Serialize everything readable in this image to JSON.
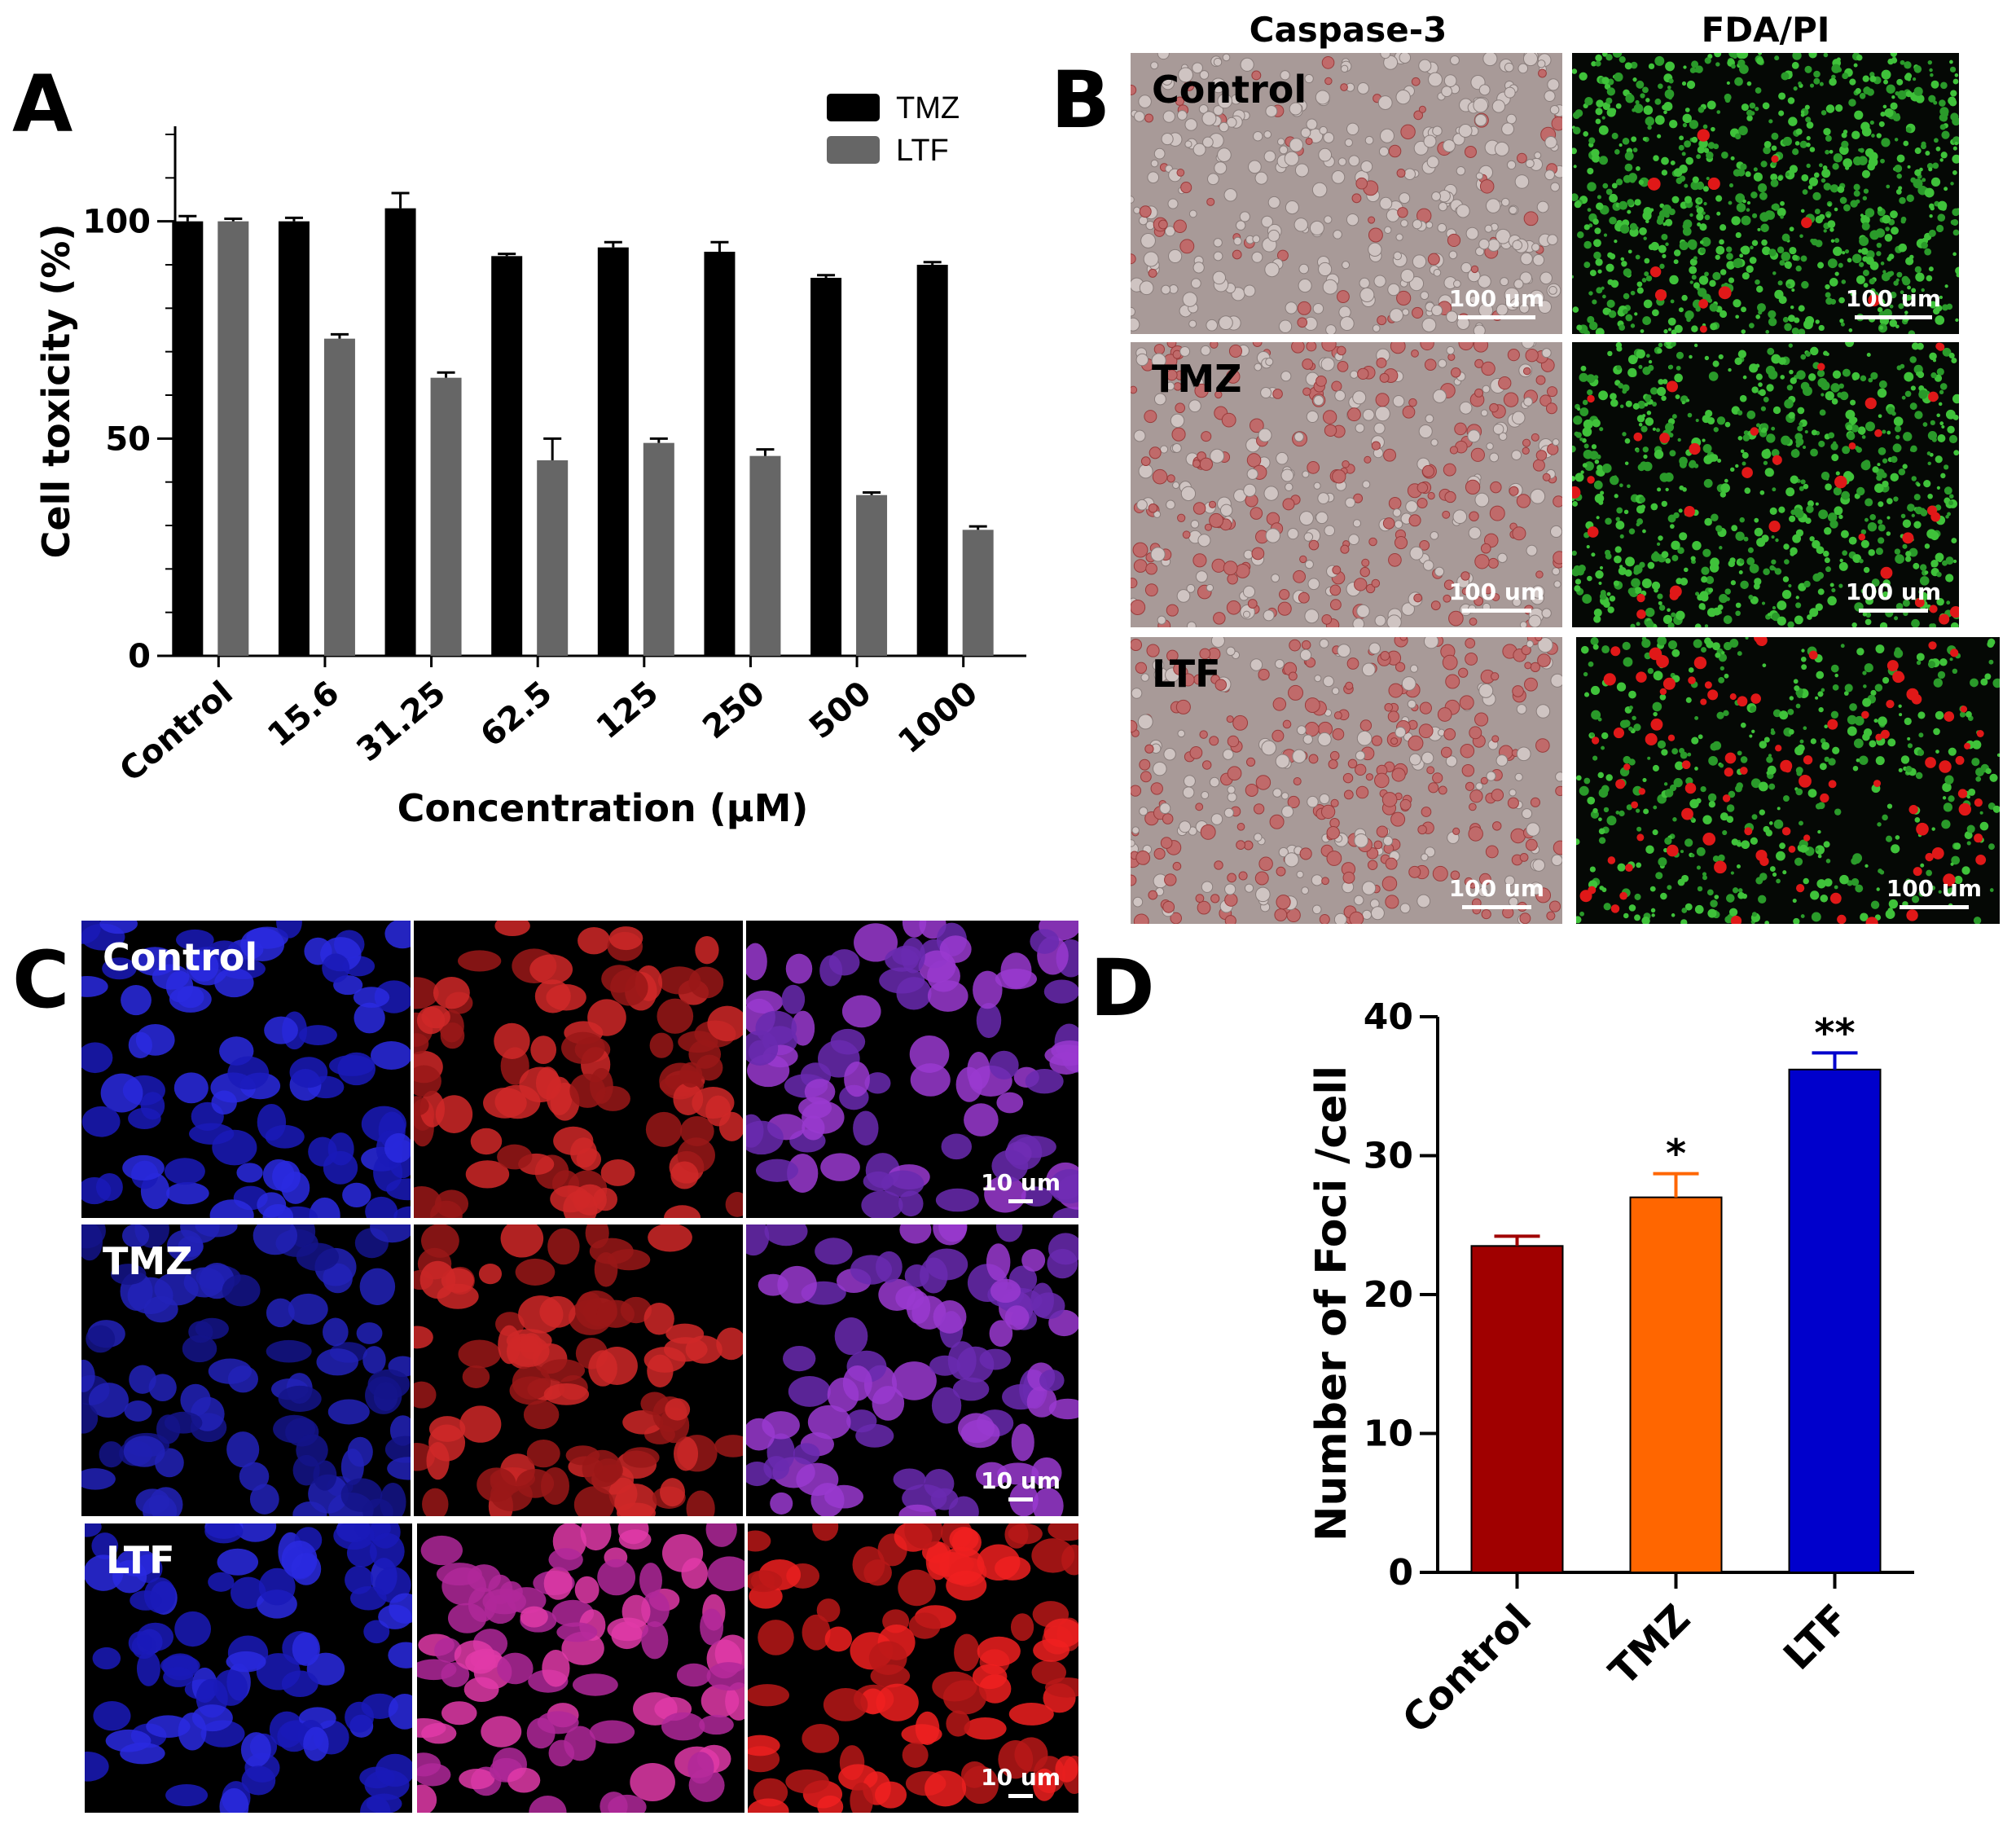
{
  "panels": {
    "a": {
      "letter": "A"
    },
    "b": {
      "letter": "B",
      "columns": [
        "Caspase-3",
        "FDA/PI"
      ],
      "rows": [
        {
          "label": "Control",
          "scale_left": "100 um",
          "scale_right": "100 um"
        },
        {
          "label": "TMZ",
          "scale_left": "100 um",
          "scale_right": "100 um"
        },
        {
          "label": "LTF",
          "scale_left": "100 um",
          "scale_right": "100 um"
        }
      ]
    },
    "c": {
      "letter": "C",
      "rows": [
        {
          "label": "Control",
          "scale": "10 um"
        },
        {
          "label": "TMZ",
          "scale": "10 um"
        },
        {
          "label": "LTF",
          "scale": "10 um"
        }
      ]
    },
    "d": {
      "letter": "D"
    }
  },
  "colors": {
    "tmz_bar": "#000000",
    "ltf_bar": "#666666",
    "d_control": "#a00000",
    "d_tmz": "#ff6600",
    "d_ltf": "#0000cc"
  },
  "chart_data": [
    {
      "type": "bar",
      "panel": "A",
      "categories": [
        "Control",
        "15.6",
        "31.25",
        "62.5",
        "125",
        "250",
        "500",
        "1000"
      ],
      "series": [
        {
          "name": "TMZ",
          "values": [
            100,
            100,
            103,
            92,
            94,
            93,
            87,
            90
          ],
          "errors": [
            1.2,
            0.8,
            3.5,
            0.5,
            1.2,
            2.2,
            0.6,
            0.6
          ]
        },
        {
          "name": "LTF",
          "values": [
            100,
            73,
            64,
            45,
            49,
            46,
            37,
            29
          ],
          "errors": [
            0.6,
            1.0,
            1.2,
            5.0,
            1.0,
            1.5,
            0.6,
            0.8
          ]
        }
      ],
      "xlabel": "Concentration (μM)",
      "ylabel": "Cell toxicity (%)",
      "yticks": [
        0,
        50,
        100
      ],
      "ylim": [
        0,
        120
      ],
      "legend": "top-right"
    },
    {
      "type": "bar",
      "panel": "D",
      "categories": [
        "Control",
        "TMZ",
        "LTF"
      ],
      "values": [
        23.5,
        27,
        36.2
      ],
      "errors": [
        0.7,
        1.7,
        1.2
      ],
      "annotations": [
        "",
        "*",
        "**"
      ],
      "ylabel": "Number of Foci /cell",
      "yticks": [
        0,
        10,
        20,
        30,
        40
      ],
      "ylim": [
        0,
        40
      ]
    }
  ]
}
